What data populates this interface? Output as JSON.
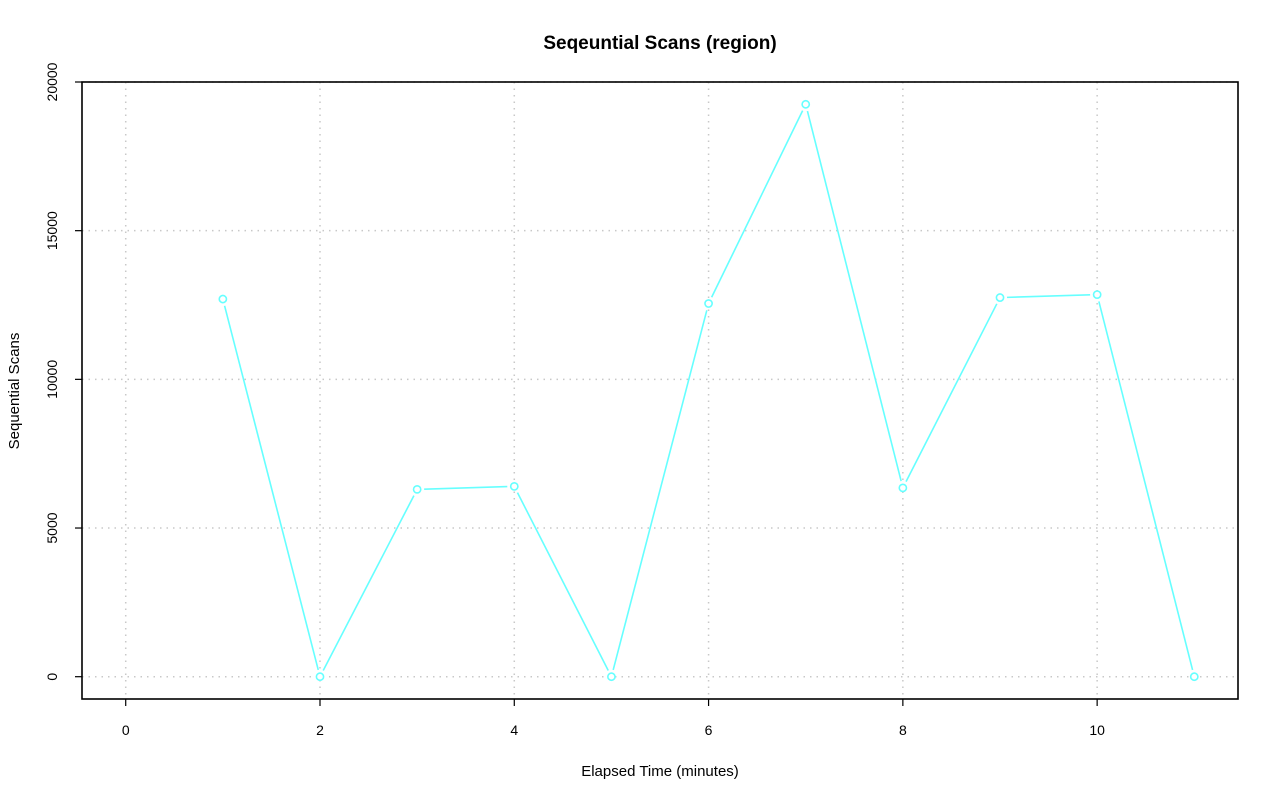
{
  "chart_data": {
    "type": "line",
    "title": "Seqeuntial Scans (region)",
    "xlabel": "Elapsed Time (minutes)",
    "ylabel": "Sequential Scans",
    "x_ticks": [
      "0",
      "2",
      "4",
      "6",
      "8",
      "10"
    ],
    "y_ticks": [
      "0",
      "5000",
      "10000",
      "15000",
      "20000"
    ],
    "xlim": [
      -0.45,
      11.45
    ],
    "ylim": [
      -750,
      20000
    ],
    "grid": true,
    "series": [
      {
        "color": "#66ffff",
        "x": [
          1,
          2,
          3,
          4,
          5,
          6,
          7,
          8,
          9,
          10,
          11
        ],
        "y": [
          12700,
          0,
          6300,
          6400,
          0,
          12550,
          19250,
          6350,
          12750,
          12850,
          0
        ]
      }
    ]
  }
}
